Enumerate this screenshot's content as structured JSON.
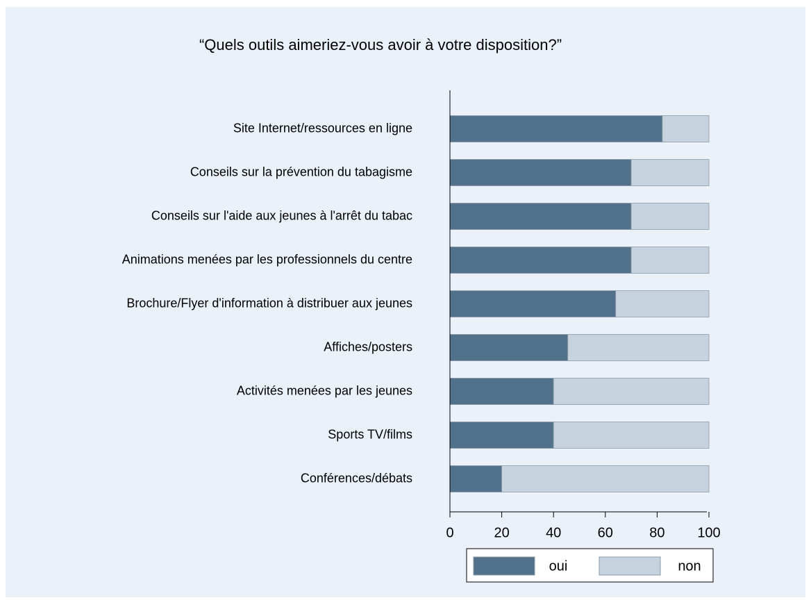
{
  "chart_data": {
    "type": "stacked_barh",
    "title": "“Quels outils aimeriez-vous avoir à votre disposition?”",
    "categories": [
      "Site Internet/ressources en ligne",
      "Conseils sur la prévention du tabagisme",
      "Conseils sur l'aide aux jeunes à l'arrêt du tabac",
      "Animations menées par les professionnels du centre",
      "Brochure/Flyer d'information à distribuer aux jeunes",
      "Affiches/posters",
      "Activités menées par les jeunes",
      "Sports TV/films",
      "Conférences/débats"
    ],
    "series": [
      {
        "name": "oui",
        "color": "#52718a",
        "values": [
          82,
          70,
          70,
          70,
          64,
          45.5,
          40,
          40,
          20
        ]
      },
      {
        "name": "non",
        "color": "#c6d3df",
        "values": [
          18,
          30,
          30,
          30,
          36,
          54.5,
          60,
          60,
          80
        ]
      }
    ],
    "xlim": [
      0,
      100
    ],
    "xticks": [
      0,
      20,
      40,
      60,
      80,
      100
    ],
    "legend": "bottom"
  }
}
